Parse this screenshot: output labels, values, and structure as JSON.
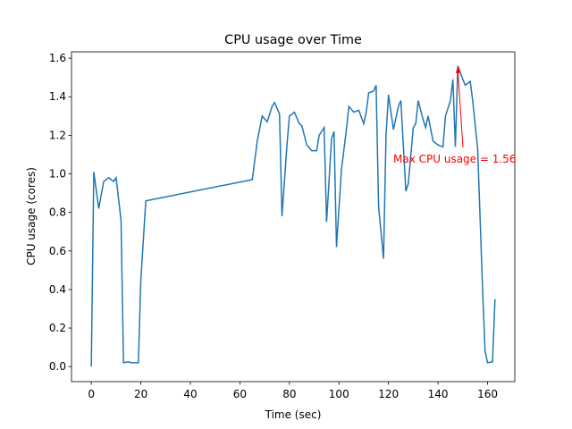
{
  "chart_data": {
    "type": "line",
    "title": "CPU usage over Time",
    "xlabel": "Time (sec)",
    "ylabel": "CPU usage (cores)",
    "color": "#1f77b4",
    "x": [
      0,
      1,
      3,
      5,
      7,
      9,
      10,
      12,
      13,
      15,
      16,
      19,
      20,
      22,
      65,
      67,
      69,
      71,
      73,
      74,
      76,
      77,
      79,
      80,
      82,
      84,
      85,
      87,
      89,
      91,
      92,
      94,
      95,
      97,
      98,
      99,
      101,
      103,
      104,
      106,
      108,
      110,
      111,
      112,
      114,
      115,
      116,
      118,
      119,
      120,
      122,
      124,
      125,
      127,
      128,
      130,
      131,
      132,
      134,
      135,
      136,
      138,
      140,
      142,
      143,
      145,
      146,
      147,
      148,
      150,
      151,
      153,
      154,
      156,
      158,
      159,
      160,
      162,
      163
    ],
    "values": [
      0.0,
      1.01,
      0.82,
      0.96,
      0.98,
      0.96,
      0.98,
      0.76,
      0.02,
      0.025,
      0.02,
      0.02,
      0.45,
      0.86,
      0.97,
      1.17,
      1.3,
      1.27,
      1.35,
      1.37,
      1.31,
      0.78,
      1.15,
      1.3,
      1.32,
      1.26,
      1.25,
      1.15,
      1.12,
      1.12,
      1.2,
      1.24,
      0.75,
      1.18,
      1.22,
      0.62,
      1.02,
      1.23,
      1.35,
      1.32,
      1.33,
      1.26,
      1.32,
      1.42,
      1.43,
      1.46,
      0.83,
      0.56,
      1.2,
      1.41,
      1.23,
      1.35,
      1.38,
      0.91,
      0.95,
      1.24,
      1.26,
      1.38,
      1.28,
      1.24,
      1.3,
      1.17,
      1.15,
      1.14,
      1.3,
      1.38,
      1.49,
      1.14,
      1.56,
      1.49,
      1.46,
      1.48,
      1.38,
      1.13,
      0.4,
      0.08,
      0.02,
      0.025,
      0.35
    ],
    "xlim": [
      -8,
      171
    ],
    "ylim": [
      -0.078,
      1.633
    ],
    "xticks": [
      0,
      20,
      40,
      60,
      80,
      100,
      120,
      140,
      160
    ],
    "yticks": [
      {
        "value": 0,
        "label": "0.0"
      },
      0.2,
      0.4,
      0.6,
      0.8,
      {
        "value": 1,
        "label": "1.0"
      },
      1.2,
      1.4,
      1.6
    ],
    "annotation": {
      "text": "Max CPU usage = 1.56",
      "color": "red"
    }
  }
}
